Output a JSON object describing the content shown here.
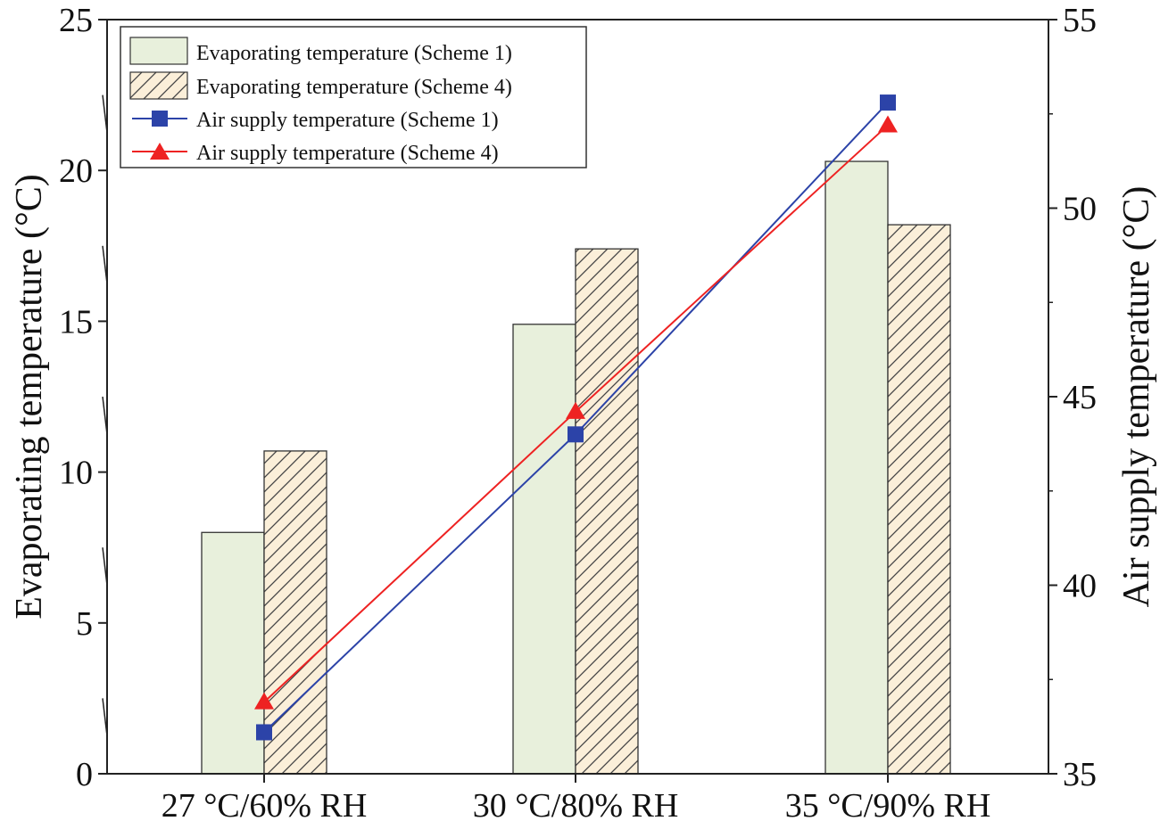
{
  "chart_data": {
    "type": "bar",
    "categories": [
      "27 °C/60% RH",
      "30 °C/80% RH",
      "35 °C/90% RH"
    ],
    "left_axis": {
      "label": "Evaporating temperature (°C)",
      "ylim": [
        0,
        25
      ],
      "ticks": [
        "0",
        "5",
        "10",
        "15",
        "20",
        "25"
      ]
    },
    "right_axis": {
      "label": "Air supply temperature (°C)",
      "ylim": [
        35,
        55
      ],
      "ticks": [
        "35",
        "40",
        "45",
        "50",
        "55"
      ]
    },
    "bar_series": [
      {
        "name": "Evaporating temperature (Scheme 1)",
        "values": [
          8.0,
          14.9,
          20.3
        ],
        "color": "#e8f0dc",
        "pattern": "solid"
      },
      {
        "name": "Evaporating temperature (Scheme 4)",
        "values": [
          10.7,
          17.4,
          18.2
        ],
        "color": "#fbefd9",
        "pattern": "hatch"
      }
    ],
    "line_series": [
      {
        "name": "Air supply temperature (Scheme 1)",
        "values": [
          36.1,
          44.0,
          52.8
        ],
        "color": "#2c43a8",
        "marker": "square"
      },
      {
        "name": "Air supply temperature (Scheme 4)",
        "values": [
          36.9,
          44.6,
          52.2
        ],
        "color": "#ee2222",
        "marker": "triangle"
      }
    ],
    "legend_position": "top-left"
  }
}
